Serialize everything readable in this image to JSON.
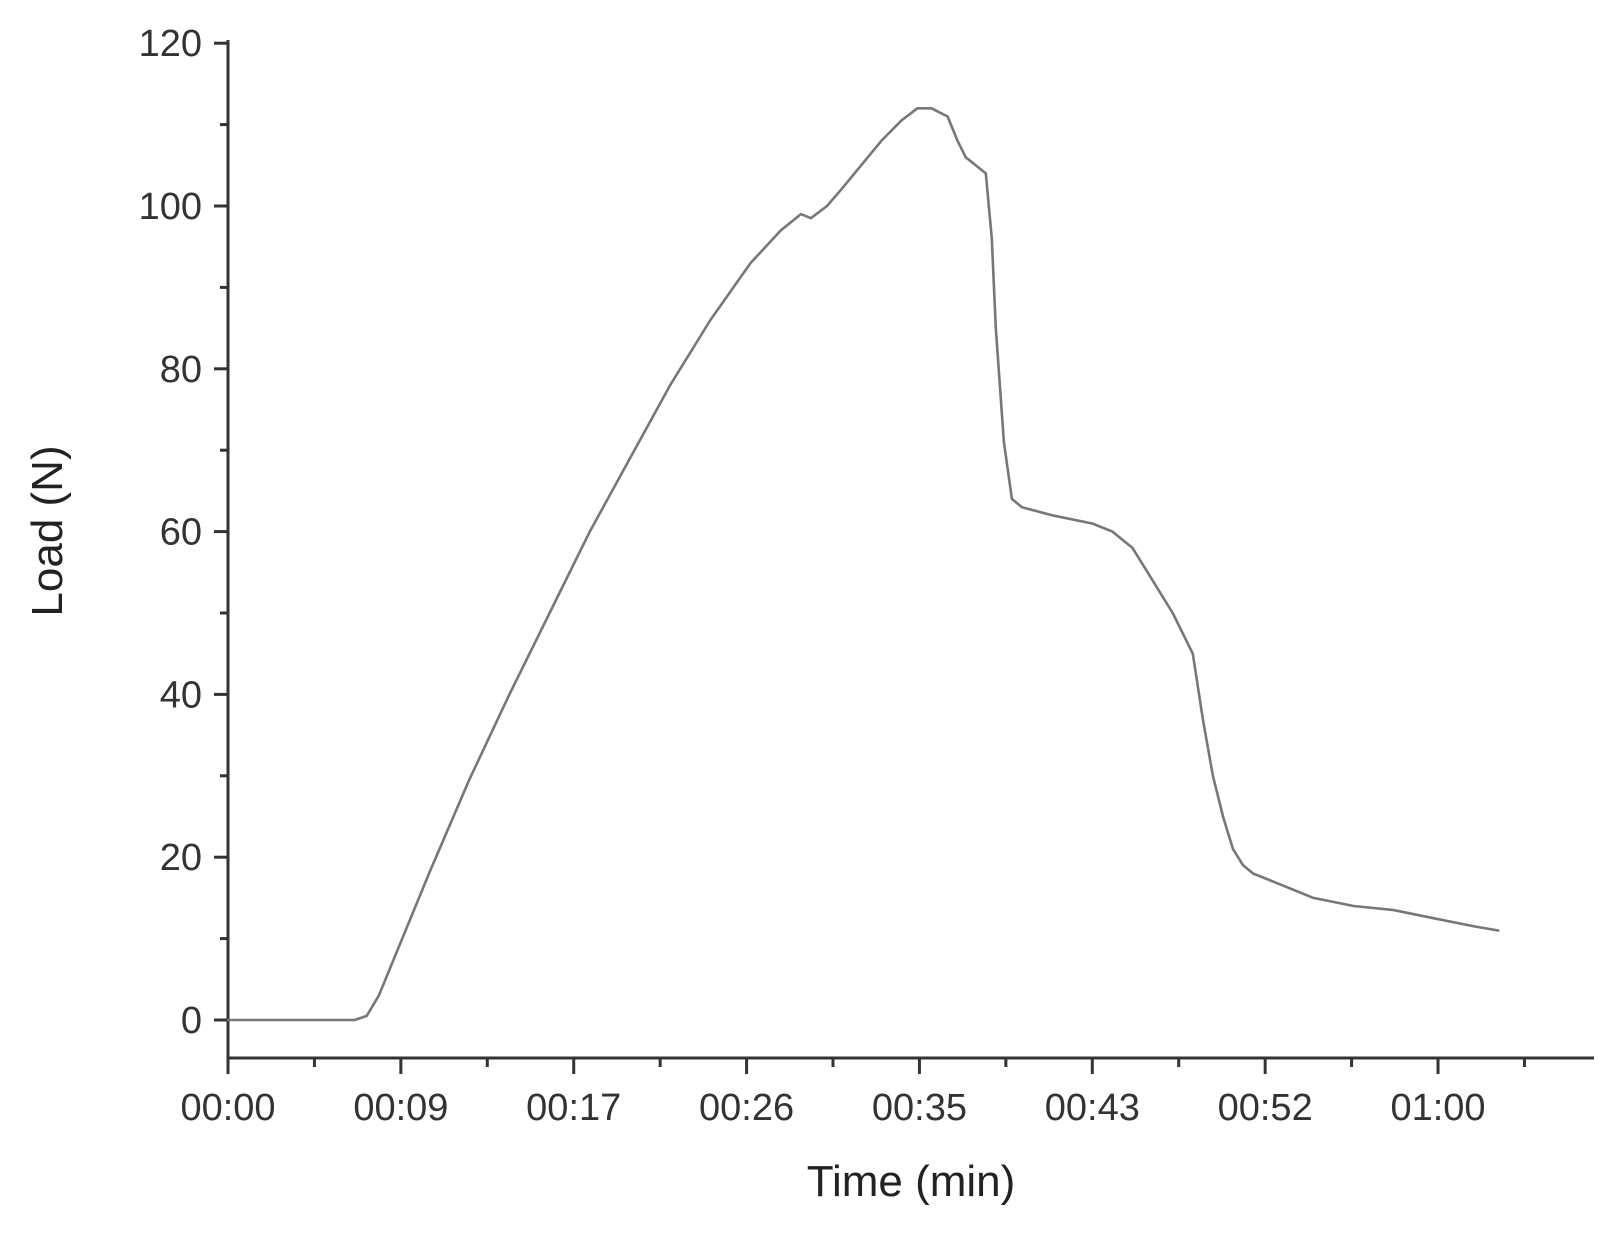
{
  "chart_data": {
    "type": "line",
    "title": "",
    "xlabel": "Time (min)",
    "ylabel": "Load (N)",
    "xlim": [
      0,
      66
    ],
    "ylim": [
      -5,
      120
    ],
    "x_unit": "seconds",
    "x_ticks": [
      {
        "value": 0,
        "label": "00:00"
      },
      {
        "value": 8.6,
        "label": "00:09"
      },
      {
        "value": 17.2,
        "label": "00:17"
      },
      {
        "value": 25.8,
        "label": "00:26"
      },
      {
        "value": 34.4,
        "label": "00:35"
      },
      {
        "value": 43.0,
        "label": "00:43"
      },
      {
        "value": 51.6,
        "label": "00:52"
      },
      {
        "value": 60.2,
        "label": "01:00"
      }
    ],
    "y_ticks": [
      {
        "value": 0,
        "label": "0"
      },
      {
        "value": 20,
        "label": "20"
      },
      {
        "value": 40,
        "label": "40"
      },
      {
        "value": 60,
        "label": "60"
      },
      {
        "value": 80,
        "label": "80"
      },
      {
        "value": 100,
        "label": "100"
      },
      {
        "value": 120,
        "label": "120"
      }
    ],
    "series": [
      {
        "color": "#777777",
        "x": [
          0,
          3,
          6.3,
          6.9,
          7.5,
          10,
          12,
          14,
          16,
          18,
          20,
          22,
          24,
          26,
          27.5,
          28.5,
          29,
          29.8,
          30.5,
          31.5,
          32.5,
          33.5,
          34.3,
          35,
          35.8,
          36.3,
          36.7,
          37.2,
          37.7,
          38,
          38.2,
          38.6,
          39,
          39.5,
          41,
          43,
          44,
          45,
          46,
          47,
          48,
          48.5,
          49,
          49.5,
          50,
          50.5,
          51,
          52,
          54,
          56,
          58,
          60,
          62,
          63.2
        ],
        "y": [
          0,
          0,
          0,
          0.5,
          3,
          18,
          29.5,
          40,
          50,
          60,
          69,
          78,
          86,
          93,
          97,
          99,
          98.5,
          100,
          102,
          105,
          108,
          110.5,
          112,
          112,
          111,
          108,
          106,
          105,
          104,
          96,
          85,
          71,
          64,
          63,
          62,
          61,
          60,
          58,
          54,
          50,
          45,
          37,
          30,
          25,
          21,
          19,
          18,
          17,
          15,
          14,
          13.5,
          12.5,
          11.5,
          11
        ]
      }
    ]
  }
}
